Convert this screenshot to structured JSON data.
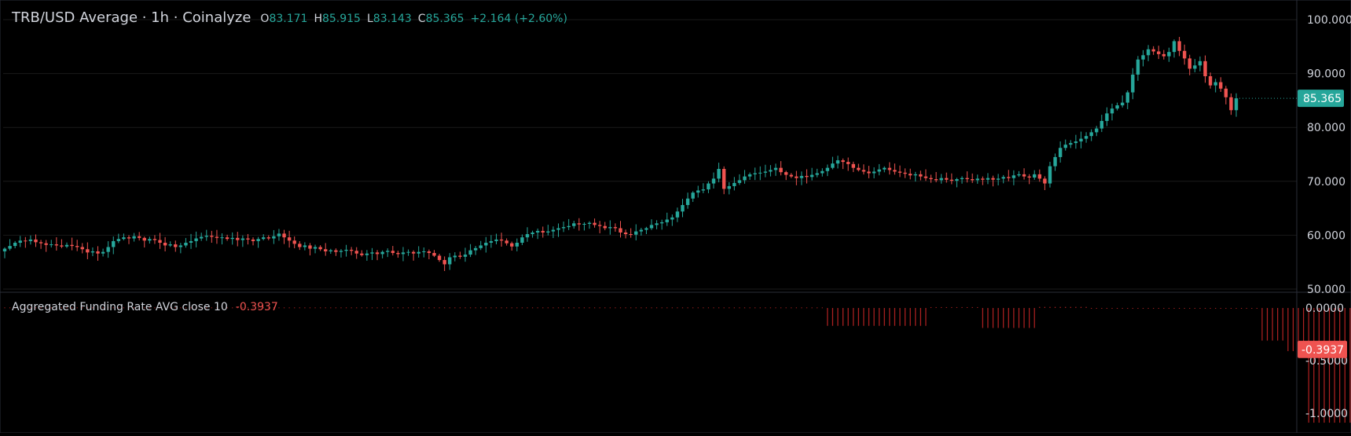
{
  "header": {
    "title": "TRB/USD Average · 1h · Coinalyze",
    "ohlc": [
      {
        "key": "O",
        "value": "83.171"
      },
      {
        "key": "H",
        "value": "85.915"
      },
      {
        "key": "L",
        "value": "83.143"
      },
      {
        "key": "C",
        "value": "85.365"
      }
    ],
    "change": "+2.164 (+2.60%)"
  },
  "indicator": {
    "name": "Aggregated Funding Rate AVG close 10",
    "value": "-0.3937"
  },
  "colors": {
    "background": "#000000",
    "up": "#26a69a",
    "down": "#ef5350",
    "grid": "#1a1a1a",
    "axis_text": "#d1d4dc",
    "histogram": "#b22222"
  },
  "chart_data": [
    {
      "type": "candlestick",
      "title": "TRB/USD Average · 1h · Coinalyze",
      "ylim": [
        50,
        100
      ],
      "y_ticks": [
        "100.000",
        "90.000",
        "80.000",
        "70.000",
        "60.000",
        "50.000"
      ],
      "last_price_label": "85.365",
      "close_series": [
        57.5,
        58,
        58.6,
        59,
        58.9,
        59.2,
        58.7,
        58.5,
        58.2,
        58.3,
        58.1,
        57.9,
        58.2,
        58,
        57.8,
        57.4,
        56.8,
        57,
        56.6,
        56.9,
        57.8,
        58.9,
        59.3,
        59.6,
        59.4,
        59.8,
        59.5,
        59,
        59.3,
        59.1,
        58.6,
        58.1,
        58.3,
        57.8,
        58.1,
        58.6,
        58.9,
        59.4,
        59.7,
        59.9,
        59.7,
        59.5,
        59.6,
        59.3,
        59.5,
        59.1,
        59.4,
        59.2,
        58.9,
        59.3,
        59.6,
        59.4,
        59.8,
        60.3,
        59.6,
        59,
        58.4,
        57.8,
        58.1,
        57.5,
        57.8,
        57.4,
        57,
        57.2,
        56.9,
        57.1,
        57.3,
        57.1,
        56.6,
        56.3,
        56.6,
        56.8,
        56.5,
        56.9,
        57.1,
        56.7,
        56.5,
        56.8,
        56.9,
        56.6,
        56.9,
        57,
        56.7,
        56.2,
        55.4,
        54.6,
        55.9,
        56.2,
        56,
        56.4,
        57.2,
        57.6,
        58.1,
        58.6,
        58.9,
        59.2,
        59,
        58.5,
        57.9,
        58.6,
        59.6,
        60.2,
        60.5,
        60.8,
        60.5,
        60.7,
        61,
        61.3,
        61.5,
        61.7,
        62.2,
        62,
        62.1,
        62.3,
        61.9,
        61.7,
        61.3,
        61.5,
        61.3,
        60.5,
        60.2,
        60.1,
        60.7,
        61,
        61.3,
        61.9,
        62.2,
        62.4,
        62.9,
        63.3,
        64.4,
        65.6,
        66.8,
        67.9,
        68.3,
        68.5,
        69.6,
        70.5,
        72.3,
        68.6,
        69.1,
        69.7,
        70.2,
        70.9,
        71.3,
        71.5,
        71.6,
        71.8,
        72.1,
        72.5,
        71.7,
        71.2,
        70.9,
        70.6,
        71,
        70.8,
        71.2,
        71.5,
        71.9,
        72.5,
        73.3,
        73.9,
        73.6,
        73.2,
        72.5,
        72.1,
        71.8,
        71.5,
        71.8,
        72.2,
        72.5,
        72.1,
        71.8,
        71.6,
        71.4,
        71.1,
        71.3,
        70.9,
        70.6,
        70.4,
        70.2,
        70.6,
        70.3,
        70.1,
        70.4,
        70.6,
        70.4,
        70.2,
        70.5,
        70.3,
        70.6,
        70.3,
        70.5,
        70.8,
        70.6,
        71.1,
        71.3,
        70.9,
        70.7,
        71.3,
        70.5,
        69.6,
        72.8,
        74.5,
        76.2,
        76.8,
        77.1,
        77.4,
        77.9,
        78.4,
        79.1,
        79.8,
        81.2,
        82.6,
        83.5,
        84.1,
        84.6,
        86.5,
        89.8,
        92.6,
        93.4,
        94.5,
        94.1,
        93.6,
        93.2,
        94,
        96,
        94.2,
        92.8,
        90.9,
        91.5,
        92.3,
        89.5,
        87.8,
        88.4,
        87.2,
        85.6,
        83.2,
        85.4
      ]
    },
    {
      "type": "bar",
      "title": "Aggregated Funding Rate AVG close 10",
      "ylim": [
        -1.2,
        0.15
      ],
      "y_ticks": [
        "0.0000",
        "-0.5000",
        "-1.0000"
      ],
      "last_value_label": "-0.3937",
      "segments": [
        {
          "from_bar": 0,
          "to_bar": 158,
          "value": 0.005
        },
        {
          "from_bar": 159,
          "to_bar": 178,
          "value": -0.17
        },
        {
          "from_bar": 179,
          "to_bar": 188,
          "value": 0.008
        },
        {
          "from_bar": 189,
          "to_bar": 199,
          "value": -0.19
        },
        {
          "from_bar": 200,
          "to_bar": 209,
          "value": 0.01
        },
        {
          "from_bar": 210,
          "to_bar": 242,
          "value": -0.003
        },
        {
          "from_bar": 243,
          "to_bar": 247,
          "value": -0.31
        },
        {
          "from_bar": 248,
          "to_bar": 251,
          "value": -0.41
        },
        {
          "from_bar": 252,
          "to_bar": 260,
          "value": -1.09
        },
        {
          "from_bar": 261,
          "to_bar": 273,
          "value": -0.41
        },
        {
          "from_bar": 274,
          "to_bar": 275,
          "value": -0.3937
        }
      ]
    }
  ]
}
